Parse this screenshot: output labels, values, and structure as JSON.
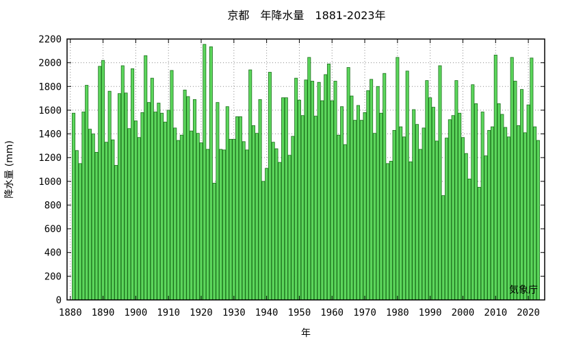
{
  "chart_data": {
    "type": "bar",
    "title": "京都　年降水量　1881-2023年",
    "xlabel": "年",
    "ylabel": "降水量 (mm)",
    "source": "気象庁",
    "xlim": [
      1879,
      2025
    ],
    "ylim": [
      0,
      2200
    ],
    "yticks": [
      0,
      200,
      400,
      600,
      800,
      1000,
      1200,
      1400,
      1600,
      1800,
      2000,
      2200
    ],
    "xticks": [
      1880,
      1890,
      1900,
      1910,
      1920,
      1930,
      1940,
      1950,
      1960,
      1970,
      1980,
      1990,
      2000,
      2010,
      2020
    ],
    "grid": true,
    "bar_color": "#5cd65c",
    "bar_edge_color": "#1a6e1a",
    "start_year": 1881,
    "values": [
      1575,
      1260,
      1150,
      1585,
      1810,
      1440,
      1400,
      1245,
      1970,
      2020,
      1330,
      1760,
      1350,
      1135,
      1740,
      1975,
      1745,
      1445,
      1950,
      1510,
      1370,
      1580,
      2060,
      1665,
      1870,
      1585,
      1660,
      1575,
      1500,
      1600,
      1935,
      1450,
      1345,
      1390,
      1770,
      1715,
      1425,
      1690,
      1405,
      1325,
      2155,
      1270,
      2135,
      985,
      1665,
      1270,
      1265,
      1630,
      1355,
      1355,
      1545,
      1545,
      1335,
      1265,
      1940,
      1470,
      1405,
      1690,
      1000,
      1110,
      1920,
      1330,
      1275,
      1160,
      1705,
      1705,
      1220,
      1380,
      1870,
      1685,
      1555,
      1855,
      2045,
      1845,
      1550,
      1835,
      1680,
      1900,
      1990,
      1680,
      1845,
      1390,
      1630,
      1310,
      1960,
      1720,
      1515,
      1640,
      1515,
      1580,
      1765,
      1860,
      1405,
      1800,
      1575,
      1910,
      1150,
      1170,
      1430,
      2045,
      1460,
      1375,
      1930,
      1165,
      1605,
      1480,
      1270,
      1450,
      1850,
      1705,
      1625,
      1340,
      1975,
      880,
      1365,
      1520,
      1555,
      1850,
      1575,
      1370,
      1235,
      1020,
      1815,
      1655,
      950,
      1585,
      1215,
      1430,
      1460,
      2065,
      1655,
      1565,
      1455,
      1375,
      2045,
      1845,
      1470,
      1775,
      1410,
      1645,
      2040,
      1460,
      1345
    ]
  }
}
